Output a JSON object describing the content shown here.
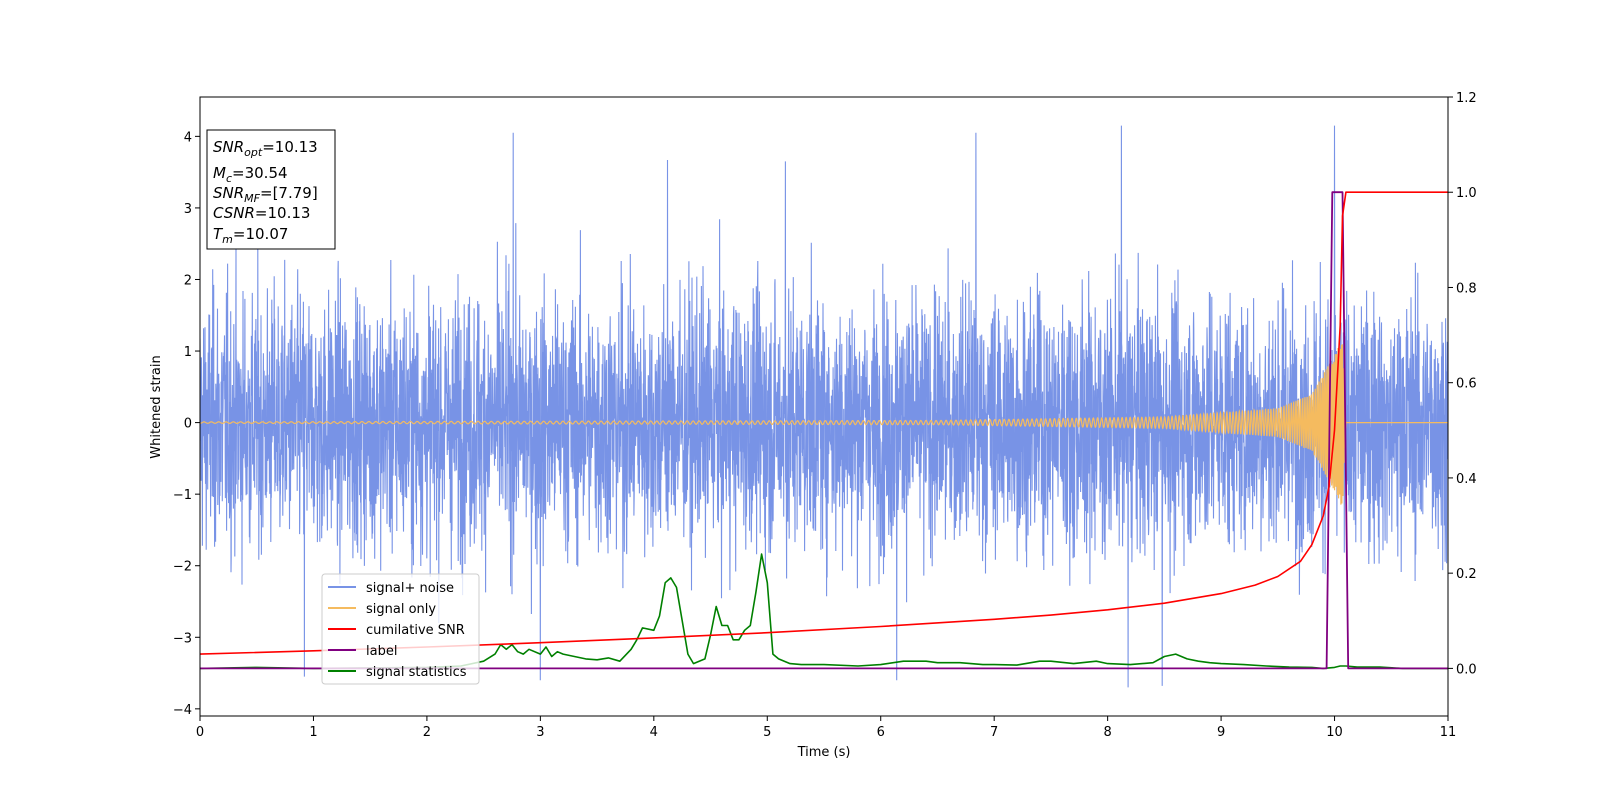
{
  "chart_data": {
    "type": "line",
    "xlabel": "Time (s)",
    "ylabel": "Whitened strain",
    "xlim": [
      0,
      11
    ],
    "ylim": [
      -4.1,
      4.55
    ],
    "y2lim": [
      -0.1,
      1.2
    ],
    "x_ticks": [
      0,
      1,
      2,
      3,
      4,
      5,
      6,
      7,
      8,
      9,
      10,
      11
    ],
    "x_tick_labels": [
      "0",
      "1",
      "2",
      "3",
      "4",
      "5",
      "6",
      "7",
      "8",
      "9",
      "10",
      "11"
    ],
    "y_ticks": [
      -4,
      -3,
      -2,
      -1,
      0,
      1,
      2,
      3,
      4
    ],
    "y_tick_labels": [
      "−4",
      "−3",
      "−2",
      "−1",
      "0",
      "1",
      "2",
      "3",
      "4"
    ],
    "y2_ticks": [
      0.0,
      0.2,
      0.4,
      0.6,
      0.8,
      1.0,
      1.2
    ],
    "y2_tick_labels": [
      "0.0",
      "0.2",
      "0.4",
      "0.6",
      "0.8",
      "1.0",
      "1.2"
    ],
    "legend_position": "lower-left",
    "info_box_position": "top-left",
    "info_box": [
      {
        "main": "SNR",
        "sub": "opt",
        "value": "=10.13",
        "italic": true
      },
      {
        "main": "M",
        "sub": "c",
        "value": "=30.54",
        "italic": true
      },
      {
        "main": "SNR",
        "sub": "MF",
        "value": "=[7.79]",
        "italic": true
      },
      {
        "main": "CSNR",
        "sub": "",
        "value": "=10.13",
        "italic": true
      },
      {
        "main": "T",
        "sub": "m",
        "value": "=10.07",
        "italic": true
      }
    ],
    "series": [
      {
        "name": "signal+ noise",
        "color": "#7893e6",
        "axis": "left",
        "description": "noise amplitude envelope",
        "typical_range": [
          -2.6,
          2.6
        ],
        "peaks": [
          {
            "x": 2.76,
            "y": 4.05
          },
          {
            "x": 4.12,
            "y": 3.67
          },
          {
            "x": 5.16,
            "y": 3.65
          },
          {
            "x": 6.84,
            "y": 4.05
          },
          {
            "x": 8.12,
            "y": 4.15
          },
          {
            "x": 10.0,
            "y": 4.15
          },
          {
            "x": 0.92,
            "y": -3.55
          },
          {
            "x": 3.0,
            "y": -3.6
          },
          {
            "x": 8.18,
            "y": -3.7
          },
          {
            "x": 8.48,
            "y": -3.68
          },
          {
            "x": 6.14,
            "y": -3.6
          }
        ]
      },
      {
        "name": "signal only",
        "color": "#f5bb5f",
        "axis": "left",
        "description": "chirp waveform",
        "amplitude": [
          [
            0,
            0.01
          ],
          [
            6.5,
            0.03
          ],
          [
            8.5,
            0.08
          ],
          [
            9.5,
            0.2
          ],
          [
            9.8,
            0.4
          ],
          [
            10.0,
            0.95
          ],
          [
            10.07,
            1.2
          ],
          [
            10.1,
            0.0
          ],
          [
            11,
            0.0
          ]
        ]
      },
      {
        "name": "cumilative SNR",
        "color": "#ff0000",
        "axis": "right",
        "x": [
          0,
          1,
          2,
          3,
          4,
          5,
          6,
          7,
          7.5,
          8,
          8.5,
          9,
          9.3,
          9.5,
          9.7,
          9.8,
          9.9,
          9.95,
          10.0,
          10.05,
          10.07,
          10.1,
          11
        ],
        "y": [
          0.03,
          0.037,
          0.045,
          0.054,
          0.064,
          0.075,
          0.088,
          0.103,
          0.112,
          0.123,
          0.137,
          0.157,
          0.175,
          0.193,
          0.225,
          0.26,
          0.32,
          0.38,
          0.5,
          0.72,
          0.95,
          1.0,
          1.0
        ]
      },
      {
        "name": "label",
        "color": "#800080",
        "axis": "right",
        "x": [
          0,
          9.93,
          9.98,
          10.07,
          10.12,
          11
        ],
        "y": [
          0,
          0,
          1.0,
          1.0,
          0,
          0
        ]
      },
      {
        "name": "signal statistics",
        "color": "#008000",
        "axis": "right",
        "x": [
          0,
          0.5,
          1,
          1.5,
          2,
          2.3,
          2.5,
          2.6,
          2.65,
          2.7,
          2.75,
          2.8,
          2.85,
          2.9,
          3.0,
          3.05,
          3.1,
          3.15,
          3.2,
          3.3,
          3.4,
          3.5,
          3.6,
          3.7,
          3.8,
          3.85,
          3.9,
          4.0,
          4.05,
          4.1,
          4.15,
          4.2,
          4.25,
          4.3,
          4.35,
          4.45,
          4.5,
          4.55,
          4.6,
          4.65,
          4.7,
          4.75,
          4.8,
          4.85,
          4.9,
          4.95,
          5.0,
          5.05,
          5.1,
          5.2,
          5.3,
          5.5,
          5.8,
          6.0,
          6.2,
          6.4,
          6.5,
          6.7,
          6.9,
          7.0,
          7.2,
          7.4,
          7.5,
          7.7,
          7.9,
          8.0,
          8.2,
          8.4,
          8.5,
          8.6,
          8.7,
          8.8,
          8.9,
          9.0,
          9.2,
          9.4,
          9.6,
          9.8,
          9.9,
          10.0,
          10.05,
          10.1,
          10.2,
          10.4,
          10.6,
          11
        ],
        "y": [
          0,
          0.002,
          0.0,
          0.001,
          0.002,
          0.005,
          0.015,
          0.03,
          0.05,
          0.04,
          0.05,
          0.035,
          0.03,
          0.04,
          0.03,
          0.045,
          0.025,
          0.035,
          0.03,
          0.025,
          0.02,
          0.018,
          0.022,
          0.015,
          0.04,
          0.06,
          0.085,
          0.08,
          0.11,
          0.18,
          0.19,
          0.17,
          0.1,
          0.03,
          0.01,
          0.02,
          0.07,
          0.13,
          0.09,
          0.09,
          0.06,
          0.06,
          0.08,
          0.09,
          0.16,
          0.24,
          0.18,
          0.03,
          0.02,
          0.01,
          0.008,
          0.008,
          0.005,
          0.008,
          0.015,
          0.015,
          0.012,
          0.012,
          0.008,
          0.008,
          0.007,
          0.015,
          0.015,
          0.01,
          0.015,
          0.01,
          0.008,
          0.012,
          0.025,
          0.03,
          0.02,
          0.015,
          0.012,
          0.01,
          0.008,
          0.005,
          0.003,
          0.002,
          0.0,
          0.002,
          0.005,
          0.005,
          0.003,
          0.003,
          0.0,
          0.0
        ]
      }
    ]
  }
}
